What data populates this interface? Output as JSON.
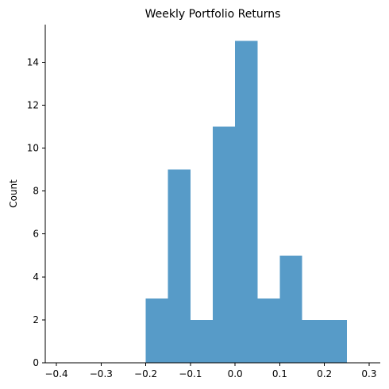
{
  "chart_data": {
    "type": "bar",
    "title": "Weekly Portfolio Returns",
    "xlabel": "",
    "ylabel": "Count",
    "bin_edges": [
      -0.2,
      -0.15,
      -0.1,
      -0.05,
      0.0,
      0.05,
      0.1,
      0.15,
      0.2,
      0.25
    ],
    "values": [
      3,
      9,
      2,
      11,
      15,
      3,
      5,
      2,
      2
    ],
    "xlim": [
      -0.425,
      0.325
    ],
    "ylim": [
      0,
      15.75
    ],
    "x_ticks": [
      -0.4,
      -0.3,
      -0.2,
      -0.1,
      0.0,
      0.1,
      0.2,
      0.3
    ],
    "x_tick_labels": [
      "−0.4",
      "−0.3",
      "−0.2",
      "−0.1",
      "0.0",
      "0.1",
      "0.2",
      "0.3"
    ],
    "y_ticks": [
      0,
      2,
      4,
      6,
      8,
      10,
      12,
      14
    ],
    "y_tick_labels": [
      "0",
      "2",
      "4",
      "6",
      "8",
      "10",
      "12",
      "14"
    ],
    "bar_color": "#579bc8",
    "grid": false,
    "legend": "none"
  }
}
